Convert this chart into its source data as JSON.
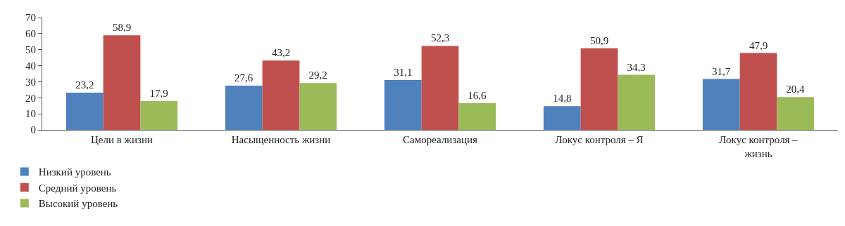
{
  "chart_data": {
    "type": "bar",
    "categories": [
      "Цели в жизни",
      "Насыщенность жизни",
      "Самореализация",
      "Локус контроля – Я",
      "Локус контроля – жизнь"
    ],
    "series": [
      {
        "name": "Низкий уровень",
        "color": "#4f81bd",
        "values": [
          23.2,
          27.6,
          31.1,
          14.8,
          31.7
        ],
        "value_labels": [
          "23,2",
          "27,6",
          "31,1",
          "14,8",
          "31,7"
        ]
      },
      {
        "name": "Средний уровень",
        "color": "#c0504d",
        "values": [
          58.9,
          43.2,
          52.3,
          50.9,
          47.9
        ],
        "value_labels": [
          "58,9",
          "43,2",
          "52,3",
          "50,9",
          "47,9"
        ]
      },
      {
        "name": "Высокий уровень",
        "color": "#9bbb59",
        "values": [
          17.9,
          29.2,
          16.6,
          34.3,
          20.4
        ],
        "value_labels": [
          "17,9",
          "29,2",
          "16,6",
          "34,3",
          "20,4"
        ]
      }
    ],
    "ylim": [
      0,
      70
    ],
    "yticks": [
      0,
      10,
      20,
      30,
      40,
      50,
      60,
      70
    ],
    "grid": false,
    "legend": "bottom left"
  }
}
